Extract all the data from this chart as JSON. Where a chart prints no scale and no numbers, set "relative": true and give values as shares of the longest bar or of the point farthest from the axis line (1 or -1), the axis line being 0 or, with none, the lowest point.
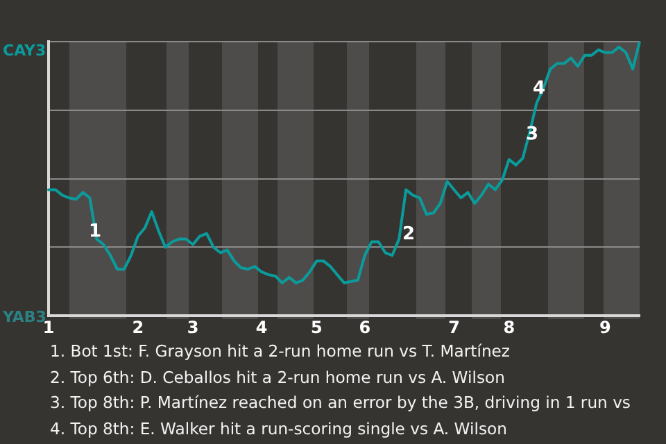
{
  "chart_data": {
    "type": "line",
    "relative": true,
    "categories": [
      "1",
      null,
      null,
      null,
      null,
      null,
      null,
      null,
      null,
      null,
      null,
      null,
      null,
      "2",
      null,
      null,
      null,
      null,
      null,
      null,
      null,
      "3",
      null,
      null,
      null,
      null,
      null,
      null,
      null,
      null,
      null,
      "4",
      null,
      null,
      null,
      null,
      null,
      null,
      null,
      "5",
      null,
      null,
      null,
      null,
      null,
      null,
      "6",
      null,
      null,
      null,
      null,
      null,
      null,
      null,
      null,
      null,
      null,
      null,
      null,
      "7",
      null,
      null,
      null,
      null,
      null,
      null,
      null,
      "8",
      null,
      null,
      null,
      null,
      null,
      null,
      null,
      null,
      null,
      null,
      null,
      null,
      null,
      "9",
      null,
      null,
      null,
      null,
      null
    ],
    "series": [
      {
        "values": [
          0.46,
          0.46,
          0.44,
          0.43,
          0.425,
          0.45,
          0.43,
          0.28,
          0.26,
          0.22,
          0.17,
          0.17,
          0.22,
          0.29,
          0.32,
          0.38,
          0.31,
          0.25,
          0.27,
          0.28,
          0.28,
          0.26,
          0.29,
          0.3,
          0.25,
          0.23,
          0.24,
          0.2,
          0.175,
          0.17,
          0.18,
          0.16,
          0.15,
          0.145,
          0.12,
          0.14,
          0.12,
          0.13,
          0.16,
          0.2,
          0.2,
          0.18,
          0.15,
          0.12,
          0.125,
          0.13,
          0.22,
          0.27,
          0.27,
          0.23,
          0.22,
          0.28,
          0.46,
          0.44,
          0.43,
          0.37,
          0.375,
          0.41,
          0.49,
          0.46,
          0.43,
          0.45,
          0.41,
          0.44,
          0.48,
          0.46,
          0.495,
          0.57,
          0.55,
          0.575,
          0.67,
          0.775,
          0.83,
          0.9,
          0.92,
          0.92,
          0.94,
          0.91,
          0.95,
          0.95,
          0.97,
          0.96,
          0.96,
          0.98,
          0.96,
          0.9,
          1
        ],
        "color": "#0a9c9c"
      }
    ],
    "grid": "y",
    "marker": "none",
    "annotations": [
      "CAY3",
      "YAB3",
      "1",
      "2",
      "3",
      "4",
      "1. Bot 1st: F. Grayson hit a 2-run home run vs T. Martínez",
      "2. Top 6th: D. Ceballos hit a 2-run home run vs A. Wilson",
      "3. Top 8th: P. Martínez reached on an error by the 3B, driving in 1 run vs",
      "4. Top 8th: E. Walker hit a run-scoring single vs A. Wilson"
    ]
  }
}
